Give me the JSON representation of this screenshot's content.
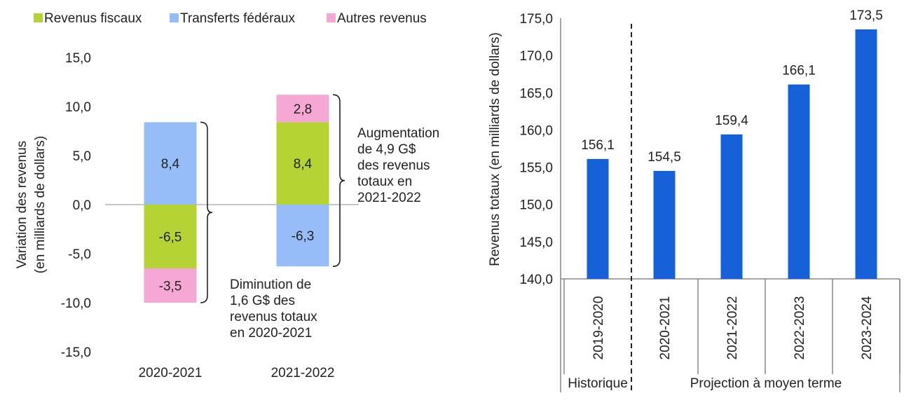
{
  "colors": {
    "tax": "#b5d334",
    "federal": "#96bdf8",
    "other": "#f6a8d4",
    "bar": "#1660d8",
    "zero_line": "#c8c8c8",
    "axis": "#888888"
  },
  "chart_data": [
    {
      "type": "bar",
      "stacked": true,
      "legend_position": "top",
      "ylabel_line1": "Variation des revenus",
      "ylabel_line2": "(en milliards de dollars)",
      "ylim": [
        -15,
        15
      ],
      "y_ticks": [
        "15,0",
        "10,0",
        "5,0",
        "0,0",
        "-5,0",
        "-10,0",
        "-15,0"
      ],
      "categories": [
        "2020-2021",
        "2021-2022"
      ],
      "series": [
        {
          "name": "Revenus fiscaux",
          "color_key": "tax",
          "values": [
            -6.5,
            8.4
          ],
          "labels": [
            "-6,5",
            "8,4"
          ]
        },
        {
          "name": "Transferts fédéraux",
          "color_key": "federal",
          "values": [
            8.4,
            -6.3
          ],
          "labels": [
            "8,4",
            "-6,3"
          ]
        },
        {
          "name": "Autres revenus",
          "color_key": "other",
          "values": [
            -3.5,
            2.8
          ],
          "labels": [
            "-3,5",
            "2,8"
          ]
        }
      ],
      "annotations": [
        {
          "category": "2020-2021",
          "lines": [
            "Diminution de",
            "1,6 G$ des",
            "revenus totaux",
            "en 2020-2021"
          ]
        },
        {
          "category": "2021-2022",
          "lines": [
            "Augmentation",
            "de 4,9 G$",
            "des revenus",
            "totaux en",
            "2021-2022"
          ]
        }
      ]
    },
    {
      "type": "bar",
      "ylabel": "Revenus totaux (en milliards de dollars)",
      "ylim": [
        140,
        175
      ],
      "y_ticks": [
        "175,0",
        "170,0",
        "165,0",
        "160,0",
        "155,0",
        "150,0",
        "145,0",
        "140,0"
      ],
      "categories": [
        "2019-2020",
        "2020-2021",
        "2021-2022",
        "2022-2023",
        "2023-2024"
      ],
      "values": [
        156.1,
        154.5,
        159.4,
        166.1,
        173.5
      ],
      "labels": [
        "156,1",
        "154,5",
        "159,4",
        "166,1",
        "173,5"
      ],
      "groups": [
        {
          "label": "Historique",
          "categories": [
            "2019-2020"
          ]
        },
        {
          "label": "Projection à moyen terme",
          "categories": [
            "2020-2021",
            "2021-2022",
            "2022-2023",
            "2023-2024"
          ]
        }
      ]
    }
  ]
}
